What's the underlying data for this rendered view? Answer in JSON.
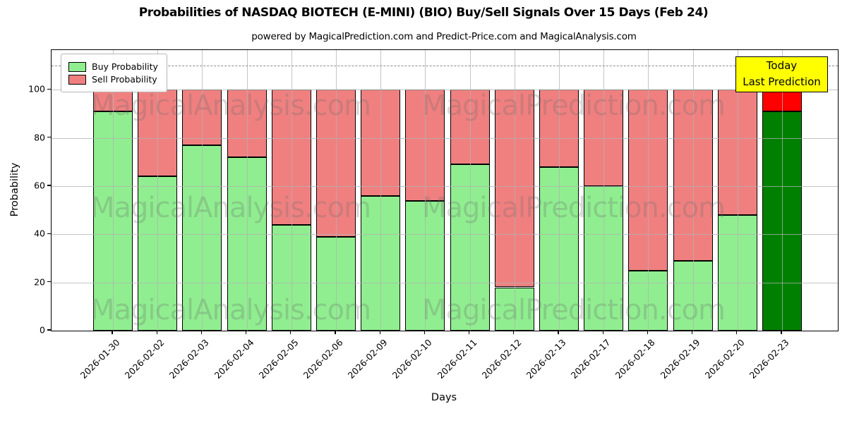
{
  "title": "Probabilities of NASDAQ BIOTECH (E-MINI) (BIO) Buy/Sell Signals Over 15 Days (Feb 24)",
  "subtitle": "powered by MagicalPrediction.com and Predict-Price.com and MagicalAnalysis.com",
  "legend": {
    "buy_label": "Buy Probability",
    "sell_label": "Sell Probability"
  },
  "annotation": {
    "line1": "Today",
    "line2": "Last Prediction"
  },
  "axes": {
    "x_label": "Days",
    "y_label": "Probability",
    "y_ticks": [
      0,
      20,
      40,
      60,
      80,
      100
    ]
  },
  "watermarks": {
    "left_text": "MagicalAnalysis.com",
    "right_text": "MagicalPrediction.com"
  },
  "colors": {
    "buy": "#90EE90",
    "sell": "#F08080",
    "buy_today": "#008000",
    "sell_today": "#FF0000",
    "annotation_bg": "#FFFF00",
    "grid": "#b2b2b2",
    "dashed_line": "#8a8a8a"
  },
  "chart_data": {
    "type": "bar",
    "stacked": true,
    "title": "Probabilities of NASDAQ BIOTECH (E-MINI) (BIO) Buy/Sell Signals Over 15 Days (Feb 24)",
    "xlabel": "Days",
    "ylabel": "Probability",
    "categories": [
      "2026-01-30",
      "2026-02-02",
      "2026-02-03",
      "2026-02-04",
      "2026-02-05",
      "2026-02-06",
      "2026-02-09",
      "2026-02-10",
      "2026-02-11",
      "2026-02-12",
      "2026-02-13",
      "2026-02-17",
      "2026-02-18",
      "2026-02-19",
      "2026-02-20",
      "2026-02-23"
    ],
    "series": [
      {
        "name": "Buy Probability",
        "values": [
          91,
          64,
          77,
          72,
          44,
          39,
          56,
          54,
          69,
          18,
          68,
          60,
          25,
          29,
          48,
          91
        ]
      },
      {
        "name": "Sell Probability",
        "values": [
          9,
          36,
          23,
          28,
          56,
          61,
          44,
          46,
          31,
          82,
          32,
          40,
          75,
          71,
          52,
          9
        ]
      }
    ],
    "ylim": [
      0,
      116.5
    ],
    "dashed_line_y": 110,
    "today_index": 15,
    "grid": true,
    "legend_position": "upper left"
  }
}
